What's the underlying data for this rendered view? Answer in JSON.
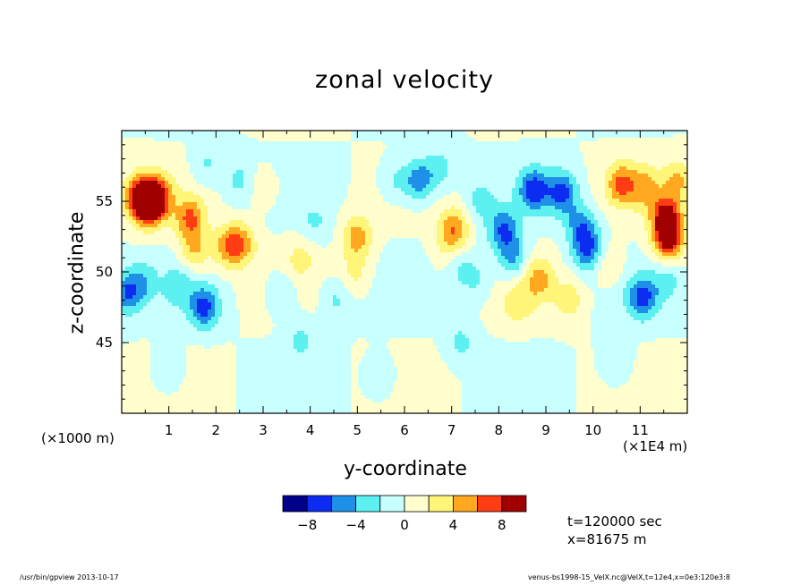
{
  "chart_data": {
    "type": "heatmap",
    "title": "zonal velocity",
    "xlabel": "y-coordinate",
    "ylabel": "z-coordinate",
    "x_units_label": "(×1E4 m)",
    "y_units_label": "(×1000 m)",
    "x_range": [
      0,
      12
    ],
    "y_range": [
      40,
      60
    ],
    "x_ticks": [
      "1",
      "2",
      "3",
      "4",
      "5",
      "6",
      "7",
      "8",
      "9",
      "10",
      "11"
    ],
    "y_ticks": [
      "45",
      "50",
      "55"
    ],
    "colorbar": {
      "levels": [
        -10,
        -8,
        -6,
        -4,
        -2,
        0,
        2,
        4,
        6,
        8,
        10
      ],
      "tick_labels": [
        "−8",
        "−4",
        "0",
        "4",
        "8"
      ],
      "tick_values": [
        -8,
        -4,
        0,
        4,
        8
      ],
      "colors": [
        "#00008a",
        "#0d2cf2",
        "#1e90e8",
        "#5cf0f0",
        "#c8ffff",
        "#fffecc",
        "#fff578",
        "#ffa820",
        "#ff3c14",
        "#a00000"
      ]
    },
    "annotation_time": "t=120000 sec",
    "annotation_x": "x=81675 m",
    "features": [
      {
        "x": 0.35,
        "y": 55.4,
        "v": 6.5
      },
      {
        "x": 0.55,
        "y": 54.8,
        "v": 9
      },
      {
        "x": 0.75,
        "y": 55.3,
        "v": 7.5
      },
      {
        "x": 1.45,
        "y": 53.8,
        "v": 6
      },
      {
        "x": 1.55,
        "y": 51.5,
        "v": 4
      },
      {
        "x": 2.25,
        "y": 51.8,
        "v": 5
      },
      {
        "x": 2.55,
        "y": 52.0,
        "v": 4.5
      },
      {
        "x": 3.0,
        "y": 56.0,
        "v": 2
      },
      {
        "x": 5.0,
        "y": 52.5,
        "v": 5
      },
      {
        "x": 4.95,
        "y": 50.0,
        "v": 2.5
      },
      {
        "x": 7.05,
        "y": 53.0,
        "v": 6
      },
      {
        "x": 6.95,
        "y": 51.0,
        "v": 4
      },
      {
        "x": 8.85,
        "y": 49.5,
        "v": 4.5
      },
      {
        "x": 10.6,
        "y": 56.2,
        "v": 6
      },
      {
        "x": 11.1,
        "y": 56.0,
        "v": 4
      },
      {
        "x": 11.55,
        "y": 54.0,
        "v": 8
      },
      {
        "x": 11.6,
        "y": 52.3,
        "v": 9.5
      },
      {
        "x": 11.8,
        "y": 56.5,
        "v": 4
      },
      {
        "x": 6.3,
        "y": 56.5,
        "v": -5.5
      },
      {
        "x": 6.75,
        "y": 57.3,
        "v": -3
      },
      {
        "x": 8.1,
        "y": 53.0,
        "v": -6
      },
      {
        "x": 8.3,
        "y": 51.0,
        "v": -4.5
      },
      {
        "x": 8.75,
        "y": 55.8,
        "v": -7
      },
      {
        "x": 9.35,
        "y": 55.6,
        "v": -6.5
      },
      {
        "x": 9.75,
        "y": 53.2,
        "v": -5
      },
      {
        "x": 9.9,
        "y": 51.5,
        "v": -6
      },
      {
        "x": 0.12,
        "y": 48.5,
        "v": -5.5
      },
      {
        "x": 0.45,
        "y": 49.3,
        "v": -3
      },
      {
        "x": 1.75,
        "y": 47.5,
        "v": -6.5
      },
      {
        "x": 1.2,
        "y": 49.0,
        "v": -3
      },
      {
        "x": 7.05,
        "y": 50.7,
        "v": -4.5
      },
      {
        "x": 7.5,
        "y": 49.5,
        "v": -2.5
      },
      {
        "x": 11.05,
        "y": 48.2,
        "v": -6.5
      },
      {
        "x": 11.6,
        "y": 49.5,
        "v": -2.5
      },
      {
        "x": 3.4,
        "y": 48.5,
        "v": -2.5
      },
      {
        "x": 4.55,
        "y": 48.0,
        "v": -2.5
      },
      {
        "x": 2.5,
        "y": 56.5,
        "v": -2.5
      },
      {
        "x": 1.8,
        "y": 57.6,
        "v": -2.5
      },
      {
        "x": 5.8,
        "y": 56.5,
        "v": -2.5
      },
      {
        "x": 7.6,
        "y": 55.0,
        "v": -2.5
      },
      {
        "x": 9.5,
        "y": 48.0,
        "v": 3
      },
      {
        "x": 8.4,
        "y": 47.8,
        "v": 3
      },
      {
        "x": 3.8,
        "y": 51.0,
        "v": 2.5
      },
      {
        "x": 4.1,
        "y": 53.5,
        "v": -2
      },
      {
        "x": 10.3,
        "y": 50.5,
        "v": 2.5
      },
      {
        "x": 3.8,
        "y": 45.3,
        "v": -2.5
      },
      {
        "x": 7.2,
        "y": 45.0,
        "v": -2.5
      },
      {
        "x": 10.5,
        "y": 43.5,
        "v": -2.5
      },
      {
        "x": 1.0,
        "y": 43.0,
        "v": -2.5
      },
      {
        "x": 5.5,
        "y": 42.5,
        "v": -2.0
      }
    ]
  },
  "footer": {
    "left": "/usr/bin/gpview   2013-10-17",
    "right": "venus-bs1998-15_VelX.nc@VelX,t=12e4,x=0e3:120e3:8"
  }
}
